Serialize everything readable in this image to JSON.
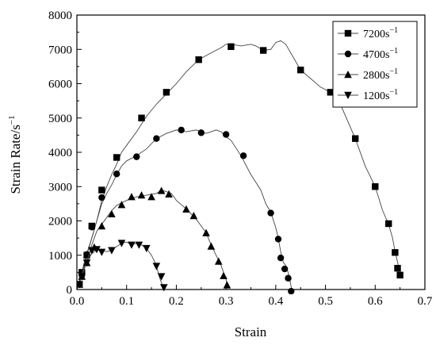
{
  "chart_data": {
    "type": "line",
    "xlabel": "Strain",
    "ylabel": "Strain Rate/s",
    "ylabel_sup": "−1",
    "xlim": [
      0,
      0.7
    ],
    "ylim": [
      0,
      8000
    ],
    "x_ticks": [
      "0.0",
      "0.1",
      "0.2",
      "0.3",
      "0.4",
      "0.5",
      "0.6",
      "0.7"
    ],
    "y_ticks": [
      "0",
      "1000",
      "2000",
      "3000",
      "4000",
      "5000",
      "6000",
      "7000",
      "8000"
    ],
    "legend_position": "top-right",
    "grid": false,
    "series": [
      {
        "name": "7200s",
        "name_sup": "−1",
        "marker": "square",
        "line": [
          [
            0,
            0
          ],
          [
            0.005,
            250
          ],
          [
            0.01,
            500
          ],
          [
            0.015,
            800
          ],
          [
            0.02,
            1050
          ],
          [
            0.03,
            1500
          ],
          [
            0.04,
            2000
          ],
          [
            0.05,
            2600
          ],
          [
            0.06,
            3000
          ],
          [
            0.07,
            3350
          ],
          [
            0.08,
            3650
          ],
          [
            0.09,
            4000
          ],
          [
            0.1,
            4200
          ],
          [
            0.12,
            4600
          ],
          [
            0.14,
            5050
          ],
          [
            0.16,
            5400
          ],
          [
            0.18,
            5700
          ],
          [
            0.2,
            6000
          ],
          [
            0.22,
            6350
          ],
          [
            0.245,
            6700
          ],
          [
            0.27,
            6900
          ],
          [
            0.29,
            7050
          ],
          [
            0.3,
            7150
          ],
          [
            0.31,
            7150
          ],
          [
            0.33,
            7100
          ],
          [
            0.35,
            7150
          ],
          [
            0.36,
            7100
          ],
          [
            0.375,
            6970
          ],
          [
            0.39,
            7000
          ],
          [
            0.4,
            7200
          ],
          [
            0.41,
            7250
          ],
          [
            0.42,
            7150
          ],
          [
            0.43,
            6900
          ],
          [
            0.45,
            6400
          ],
          [
            0.47,
            6150
          ],
          [
            0.49,
            5900
          ],
          [
            0.51,
            5750
          ],
          [
            0.53,
            5400
          ],
          [
            0.56,
            4400
          ],
          [
            0.58,
            3600
          ],
          [
            0.6,
            3000
          ],
          [
            0.615,
            2300
          ],
          [
            0.627,
            1900
          ],
          [
            0.635,
            1500
          ],
          [
            0.64,
            1100
          ],
          [
            0.645,
            800
          ],
          [
            0.648,
            600
          ],
          [
            0.65,
            500
          ],
          [
            0.652,
            400
          ]
        ],
        "markers": [
          [
            0.005,
            150
          ],
          [
            0.01,
            500
          ],
          [
            0.02,
            1000
          ],
          [
            0.03,
            1850
          ],
          [
            0.05,
            2900
          ],
          [
            0.08,
            3850
          ],
          [
            0.13,
            5000
          ],
          [
            0.18,
            5750
          ],
          [
            0.245,
            6700
          ],
          [
            0.31,
            7080
          ],
          [
            0.375,
            6970
          ],
          [
            0.45,
            6400
          ],
          [
            0.51,
            5750
          ],
          [
            0.56,
            4400
          ],
          [
            0.6,
            3000
          ],
          [
            0.627,
            1920
          ],
          [
            0.64,
            1080
          ],
          [
            0.645,
            620
          ],
          [
            0.65,
            420
          ]
        ]
      },
      {
        "name": "4700s",
        "name_sup": "−1",
        "marker": "circle",
        "line": [
          [
            0,
            0
          ],
          [
            0.005,
            200
          ],
          [
            0.01,
            450
          ],
          [
            0.015,
            700
          ],
          [
            0.02,
            1000
          ],
          [
            0.03,
            1500
          ],
          [
            0.04,
            2000
          ],
          [
            0.05,
            2500
          ],
          [
            0.06,
            2800
          ],
          [
            0.07,
            3050
          ],
          [
            0.08,
            3350
          ],
          [
            0.09,
            3600
          ],
          [
            0.1,
            3750
          ],
          [
            0.12,
            3900
          ],
          [
            0.14,
            4100
          ],
          [
            0.16,
            4400
          ],
          [
            0.18,
            4550
          ],
          [
            0.2,
            4650
          ],
          [
            0.22,
            4600
          ],
          [
            0.24,
            4650
          ],
          [
            0.26,
            4550
          ],
          [
            0.28,
            4650
          ],
          [
            0.29,
            4600
          ],
          [
            0.3,
            4450
          ],
          [
            0.31,
            4350
          ],
          [
            0.33,
            3900
          ],
          [
            0.35,
            3350
          ],
          [
            0.37,
            2900
          ],
          [
            0.38,
            2500
          ],
          [
            0.39,
            2250
          ],
          [
            0.4,
            1800
          ],
          [
            0.405,
            1500
          ],
          [
            0.41,
            1100
          ],
          [
            0.415,
            800
          ],
          [
            0.42,
            700
          ],
          [
            0.425,
            500
          ],
          [
            0.428,
            320
          ],
          [
            0.43,
            150
          ],
          [
            0.432,
            0
          ]
        ],
        "markers": [
          [
            0.005,
            150
          ],
          [
            0.01,
            420
          ],
          [
            0.02,
            1020
          ],
          [
            0.03,
            1820
          ],
          [
            0.05,
            2680
          ],
          [
            0.08,
            3370
          ],
          [
            0.12,
            3870
          ],
          [
            0.16,
            4400
          ],
          [
            0.21,
            4650
          ],
          [
            0.25,
            4570
          ],
          [
            0.3,
            4520
          ],
          [
            0.335,
            3900
          ],
          [
            0.39,
            2230
          ],
          [
            0.405,
            1470
          ],
          [
            0.41,
            920
          ],
          [
            0.418,
            600
          ],
          [
            0.425,
            330
          ],
          [
            0.431,
            -50
          ]
        ]
      },
      {
        "name": "2800s",
        "name_sup": "−1",
        "marker": "triangle-up",
        "line": [
          [
            0,
            0
          ],
          [
            0.005,
            200
          ],
          [
            0.01,
            450
          ],
          [
            0.02,
            800
          ],
          [
            0.03,
            1300
          ],
          [
            0.04,
            1700
          ],
          [
            0.05,
            1900
          ],
          [
            0.06,
            2100
          ],
          [
            0.07,
            2300
          ],
          [
            0.08,
            2450
          ],
          [
            0.1,
            2600
          ],
          [
            0.12,
            2700
          ],
          [
            0.14,
            2750
          ],
          [
            0.16,
            2800
          ],
          [
            0.17,
            2900
          ],
          [
            0.18,
            2850
          ],
          [
            0.19,
            2800
          ],
          [
            0.2,
            2600
          ],
          [
            0.22,
            2350
          ],
          [
            0.24,
            2050
          ],
          [
            0.26,
            1650
          ],
          [
            0.27,
            1300
          ],
          [
            0.28,
            1000
          ],
          [
            0.29,
            700
          ],
          [
            0.295,
            500
          ],
          [
            0.3,
            300
          ],
          [
            0.302,
            120
          ]
        ],
        "markers": [
          [
            0.005,
            150
          ],
          [
            0.01,
            380
          ],
          [
            0.02,
            780
          ],
          [
            0.035,
            1230
          ],
          [
            0.05,
            1850
          ],
          [
            0.07,
            2200
          ],
          [
            0.09,
            2470
          ],
          [
            0.11,
            2700
          ],
          [
            0.13,
            2750
          ],
          [
            0.15,
            2700
          ],
          [
            0.17,
            2880
          ],
          [
            0.185,
            2780
          ],
          [
            0.22,
            2340
          ],
          [
            0.235,
            2150
          ],
          [
            0.26,
            1650
          ],
          [
            0.27,
            1260
          ],
          [
            0.285,
            820
          ],
          [
            0.295,
            400
          ],
          [
            0.302,
            130
          ]
        ]
      },
      {
        "name": "1200s",
        "name_sup": "−1",
        "marker": "triangle-down",
        "line": [
          [
            0,
            0
          ],
          [
            0.005,
            150
          ],
          [
            0.01,
            400
          ],
          [
            0.02,
            800
          ],
          [
            0.03,
            1050
          ],
          [
            0.04,
            1150
          ],
          [
            0.05,
            1150
          ],
          [
            0.06,
            1100
          ],
          [
            0.07,
            1150
          ],
          [
            0.08,
            1250
          ],
          [
            0.09,
            1350
          ],
          [
            0.1,
            1380
          ],
          [
            0.11,
            1320
          ],
          [
            0.12,
            1340
          ],
          [
            0.13,
            1300
          ],
          [
            0.14,
            1200
          ],
          [
            0.15,
            1000
          ],
          [
            0.16,
            700
          ],
          [
            0.165,
            400
          ],
          [
            0.17,
            200
          ],
          [
            0.175,
            50
          ]
        ],
        "markers": [
          [
            0.005,
            150
          ],
          [
            0.01,
            380
          ],
          [
            0.02,
            780
          ],
          [
            0.03,
            1140
          ],
          [
            0.04,
            1170
          ],
          [
            0.05,
            1090
          ],
          [
            0.07,
            1140
          ],
          [
            0.09,
            1350
          ],
          [
            0.11,
            1300
          ],
          [
            0.125,
            1300
          ],
          [
            0.14,
            1200
          ],
          [
            0.16,
            680
          ],
          [
            0.17,
            380
          ],
          [
            0.175,
            60
          ]
        ]
      }
    ]
  }
}
